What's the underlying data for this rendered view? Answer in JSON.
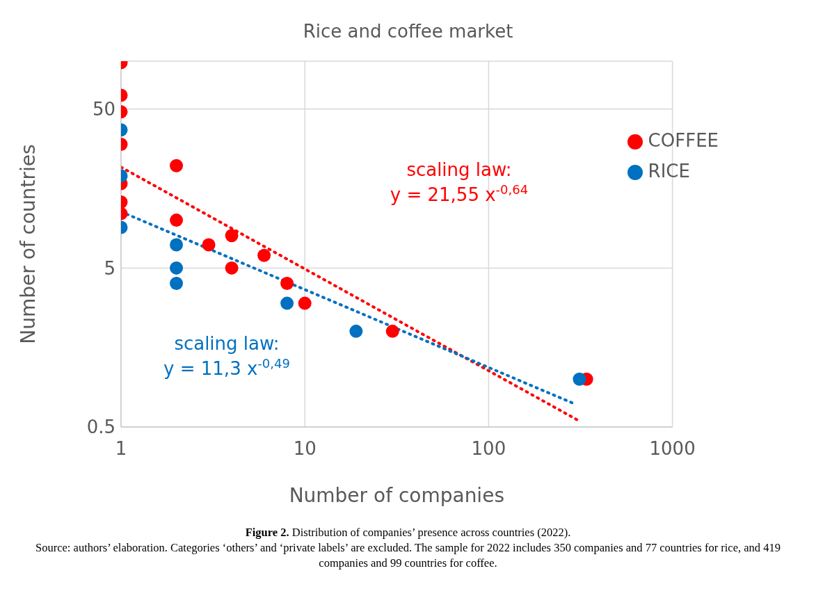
{
  "chart_data": {
    "type": "scatter",
    "title": "Rice and coffee market",
    "xlabel": "Number of companies",
    "ylabel": "Number of countries",
    "log": "xy",
    "xlim": [
      1,
      1000
    ],
    "xticks": [
      1,
      10,
      100,
      1000
    ],
    "ylim": [
      0.5,
      100
    ],
    "yticks": [
      0.5,
      5,
      50
    ],
    "grid": true,
    "legend": "top right",
    "marker": "circle",
    "series": [
      {
        "name": "COFFEE",
        "color": "#ff0000",
        "x": [
          1,
          1,
          1,
          1,
          1,
          1,
          1,
          2,
          2,
          3,
          4,
          4,
          6,
          8,
          10,
          30,
          341
        ],
        "values": [
          98,
          61,
          48,
          30,
          17,
          13,
          11,
          22,
          10,
          7,
          8,
          5,
          6,
          4,
          3,
          2,
          1
        ]
      },
      {
        "name": "RICE",
        "color": "#0070c0",
        "x": [
          1,
          1,
          1,
          2,
          2,
          2,
          8,
          19,
          312
        ],
        "values": [
          37,
          19,
          9,
          7,
          5,
          4,
          3,
          2,
          1
        ]
      },
      {
        "type": "line",
        "color": "#ff0000",
        "line_style": "dotted",
        "marker": "none",
        "x": [
          1,
          310
        ],
        "values": [
          21.55,
          0.547
        ]
      },
      {
        "type": "line",
        "color": "#0070c0",
        "line_style": "dotted",
        "marker": "none",
        "x": [
          1,
          290
        ],
        "values": [
          11.3,
          0.703
        ]
      }
    ],
    "annotations": [
      "scaling law:\ny = 21,55 x$^{-0,64}$",
      "scaling law:\ny = 11,3 x$^{-0,49}$",
      "Figure 2. Distribution of companies’ presence across countries (2022).",
      "Source: authors’ elaboration. Categories ‘others’ and ‘private labels’ are excluded. The sample for 2022 includes 350 companies and 77 countries for rice, and 419 companies and 99 countries for coffee."
    ]
  }
}
